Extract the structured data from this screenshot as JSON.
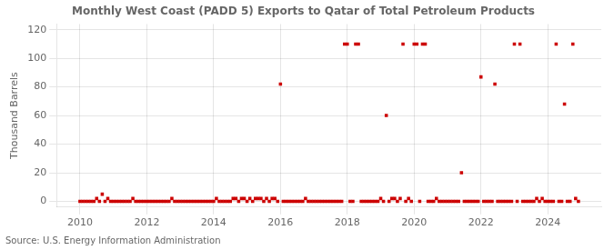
{
  "chart_data": {
    "type": "scatter",
    "title": "Monthly West Coast (PADD 5) Exports to Qatar of Total Petroleum Products",
    "ylabel": "Thousand Barrels",
    "annotations": [
      "Source: U.S. Energy Information Administration"
    ],
    "color": "#cc0000",
    "marker": "square",
    "grid": true,
    "xlim": [
      2009.3,
      2025.6
    ],
    "xticks": [
      2010,
      2012,
      2014,
      2016,
      2018,
      2020,
      2022,
      2024
    ],
    "ylim": [
      -4,
      124
    ],
    "yticks": [
      0,
      20,
      40,
      60,
      80,
      100,
      120
    ],
    "x": [
      2010.0,
      2010.083,
      2010.167,
      2010.25,
      2010.333,
      2010.417,
      2010.5,
      2010.583,
      2010.667,
      2010.75,
      2010.833,
      2010.917,
      2011.0,
      2011.083,
      2011.167,
      2011.25,
      2011.333,
      2011.417,
      2011.5,
      2011.583,
      2011.667,
      2011.75,
      2011.833,
      2011.917,
      2012.0,
      2012.083,
      2012.167,
      2012.25,
      2012.333,
      2012.417,
      2012.5,
      2012.583,
      2012.667,
      2012.75,
      2012.833,
      2012.917,
      2013.0,
      2013.083,
      2013.167,
      2013.25,
      2013.333,
      2013.417,
      2013.5,
      2013.583,
      2013.667,
      2013.75,
      2013.833,
      2013.917,
      2014.0,
      2014.083,
      2014.167,
      2014.25,
      2014.333,
      2014.417,
      2014.5,
      2014.583,
      2014.667,
      2014.75,
      2014.833,
      2014.917,
      2015.0,
      2015.083,
      2015.167,
      2015.25,
      2015.333,
      2015.417,
      2015.5,
      2015.583,
      2015.667,
      2015.75,
      2015.833,
      2015.917,
      2016.0,
      2016.083,
      2016.167,
      2016.25,
      2016.333,
      2016.417,
      2016.5,
      2016.583,
      2016.667,
      2016.75,
      2016.833,
      2016.917,
      2017.0,
      2017.083,
      2017.167,
      2017.25,
      2017.333,
      2017.417,
      2017.5,
      2017.583,
      2017.667,
      2017.75,
      2017.833,
      2017.917,
      2018.0,
      2018.083,
      2018.167,
      2018.25,
      2018.333,
      2018.417,
      2018.5,
      2018.583,
      2018.667,
      2018.75,
      2018.833,
      2018.917,
      2019.0,
      2019.083,
      2019.167,
      2019.25,
      2019.333,
      2019.417,
      2019.5,
      2019.583,
      2019.667,
      2019.75,
      2019.833,
      2019.917,
      2020.0,
      2020.083,
      2020.167,
      2020.25,
      2020.333,
      2020.417,
      2020.5,
      2020.583,
      2020.667,
      2020.75,
      2020.833,
      2020.917,
      2021.0,
      2021.083,
      2021.167,
      2021.25,
      2021.333,
      2021.417,
      2021.5,
      2021.583,
      2021.667,
      2021.75,
      2021.833,
      2021.917,
      2022.0,
      2022.083,
      2022.167,
      2022.25,
      2022.333,
      2022.417,
      2022.5,
      2022.583,
      2022.667,
      2022.75,
      2022.833,
      2022.917,
      2023.0,
      2023.083,
      2023.167,
      2023.25,
      2023.333,
      2023.417,
      2023.5,
      2023.583,
      2023.667,
      2023.75,
      2023.833,
      2023.917,
      2024.0,
      2024.083,
      2024.167,
      2024.25,
      2024.333,
      2024.417,
      2024.5,
      2024.583,
      2024.667,
      2024.75,
      2024.833,
      2024.917
    ],
    "values": [
      0,
      0,
      0,
      0,
      0,
      0,
      2,
      0,
      5,
      0,
      2,
      0,
      0,
      0,
      0,
      0,
      0,
      0,
      0,
      2,
      0,
      0,
      0,
      0,
      0,
      0,
      0,
      0,
      0,
      0,
      0,
      0,
      0,
      2,
      0,
      0,
      0,
      0,
      0,
      0,
      0,
      0,
      0,
      0,
      0,
      0,
      0,
      0,
      0,
      2,
      0,
      0,
      0,
      0,
      0,
      2,
      2,
      0,
      2,
      2,
      0,
      2,
      0,
      2,
      2,
      2,
      0,
      2,
      0,
      2,
      2,
      0,
      82,
      0,
      0,
      0,
      0,
      0,
      0,
      0,
      0,
      2,
      0,
      0,
      0,
      0,
      0,
      0,
      0,
      0,
      0,
      0,
      0,
      0,
      0,
      110,
      110,
      0,
      0,
      110,
      110,
      0,
      0,
      0,
      0,
      0,
      0,
      0,
      2,
      0,
      60,
      0,
      2,
      2,
      0,
      2,
      110,
      0,
      2,
      0,
      110,
      110,
      0,
      110,
      110,
      0,
      0,
      0,
      2,
      0,
      0,
      0,
      0,
      0,
      0,
      0,
      0,
      20,
      0,
      0,
      0,
      0,
      0,
      0,
      87,
      0,
      0,
      0,
      0,
      82,
      0,
      0,
      0,
      0,
      0,
      0,
      110,
      0,
      110,
      0,
      0,
      0,
      0,
      0,
      2,
      0,
      2,
      0,
      0,
      0,
      0,
      110,
      0,
      0,
      68,
      0,
      0,
      110,
      2,
      0
    ]
  }
}
